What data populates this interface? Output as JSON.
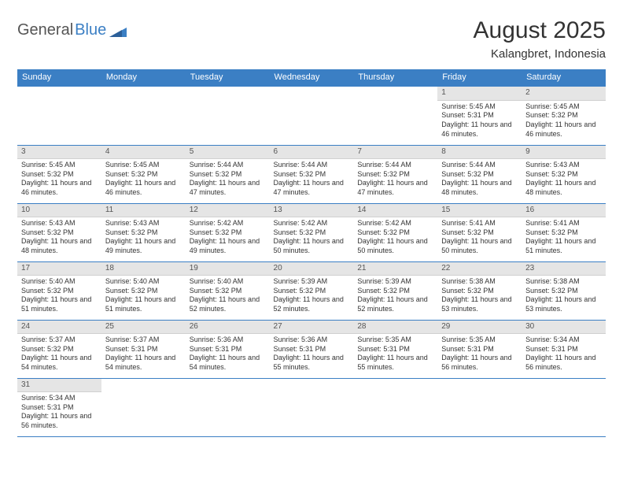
{
  "logo": {
    "word1": "General",
    "word2": "Blue"
  },
  "header": {
    "title": "August 2025",
    "location": "Kalangbret, Indonesia"
  },
  "columns": [
    "Sunday",
    "Monday",
    "Tuesday",
    "Wednesday",
    "Thursday",
    "Friday",
    "Saturday"
  ],
  "colors": {
    "header_bg": "#3b7fc4",
    "header_fg": "#ffffff",
    "daynum_bg": "#e5e5e5",
    "rule": "#3b7fc4"
  },
  "layout": {
    "blank_leading": 5
  },
  "days": [
    {
      "n": 1,
      "sunrise": "5:45 AM",
      "sunset": "5:31 PM",
      "daylight": "11 hours and 46 minutes."
    },
    {
      "n": 2,
      "sunrise": "5:45 AM",
      "sunset": "5:32 PM",
      "daylight": "11 hours and 46 minutes."
    },
    {
      "n": 3,
      "sunrise": "5:45 AM",
      "sunset": "5:32 PM",
      "daylight": "11 hours and 46 minutes."
    },
    {
      "n": 4,
      "sunrise": "5:45 AM",
      "sunset": "5:32 PM",
      "daylight": "11 hours and 46 minutes."
    },
    {
      "n": 5,
      "sunrise": "5:44 AM",
      "sunset": "5:32 PM",
      "daylight": "11 hours and 47 minutes."
    },
    {
      "n": 6,
      "sunrise": "5:44 AM",
      "sunset": "5:32 PM",
      "daylight": "11 hours and 47 minutes."
    },
    {
      "n": 7,
      "sunrise": "5:44 AM",
      "sunset": "5:32 PM",
      "daylight": "11 hours and 47 minutes."
    },
    {
      "n": 8,
      "sunrise": "5:44 AM",
      "sunset": "5:32 PM",
      "daylight": "11 hours and 48 minutes."
    },
    {
      "n": 9,
      "sunrise": "5:43 AM",
      "sunset": "5:32 PM",
      "daylight": "11 hours and 48 minutes."
    },
    {
      "n": 10,
      "sunrise": "5:43 AM",
      "sunset": "5:32 PM",
      "daylight": "11 hours and 48 minutes."
    },
    {
      "n": 11,
      "sunrise": "5:43 AM",
      "sunset": "5:32 PM",
      "daylight": "11 hours and 49 minutes."
    },
    {
      "n": 12,
      "sunrise": "5:42 AM",
      "sunset": "5:32 PM",
      "daylight": "11 hours and 49 minutes."
    },
    {
      "n": 13,
      "sunrise": "5:42 AM",
      "sunset": "5:32 PM",
      "daylight": "11 hours and 50 minutes."
    },
    {
      "n": 14,
      "sunrise": "5:42 AM",
      "sunset": "5:32 PM",
      "daylight": "11 hours and 50 minutes."
    },
    {
      "n": 15,
      "sunrise": "5:41 AM",
      "sunset": "5:32 PM",
      "daylight": "11 hours and 50 minutes."
    },
    {
      "n": 16,
      "sunrise": "5:41 AM",
      "sunset": "5:32 PM",
      "daylight": "11 hours and 51 minutes."
    },
    {
      "n": 17,
      "sunrise": "5:40 AM",
      "sunset": "5:32 PM",
      "daylight": "11 hours and 51 minutes."
    },
    {
      "n": 18,
      "sunrise": "5:40 AM",
      "sunset": "5:32 PM",
      "daylight": "11 hours and 51 minutes."
    },
    {
      "n": 19,
      "sunrise": "5:40 AM",
      "sunset": "5:32 PM",
      "daylight": "11 hours and 52 minutes."
    },
    {
      "n": 20,
      "sunrise": "5:39 AM",
      "sunset": "5:32 PM",
      "daylight": "11 hours and 52 minutes."
    },
    {
      "n": 21,
      "sunrise": "5:39 AM",
      "sunset": "5:32 PM",
      "daylight": "11 hours and 52 minutes."
    },
    {
      "n": 22,
      "sunrise": "5:38 AM",
      "sunset": "5:32 PM",
      "daylight": "11 hours and 53 minutes."
    },
    {
      "n": 23,
      "sunrise": "5:38 AM",
      "sunset": "5:32 PM",
      "daylight": "11 hours and 53 minutes."
    },
    {
      "n": 24,
      "sunrise": "5:37 AM",
      "sunset": "5:32 PM",
      "daylight": "11 hours and 54 minutes."
    },
    {
      "n": 25,
      "sunrise": "5:37 AM",
      "sunset": "5:31 PM",
      "daylight": "11 hours and 54 minutes."
    },
    {
      "n": 26,
      "sunrise": "5:36 AM",
      "sunset": "5:31 PM",
      "daylight": "11 hours and 54 minutes."
    },
    {
      "n": 27,
      "sunrise": "5:36 AM",
      "sunset": "5:31 PM",
      "daylight": "11 hours and 55 minutes."
    },
    {
      "n": 28,
      "sunrise": "5:35 AM",
      "sunset": "5:31 PM",
      "daylight": "11 hours and 55 minutes."
    },
    {
      "n": 29,
      "sunrise": "5:35 AM",
      "sunset": "5:31 PM",
      "daylight": "11 hours and 56 minutes."
    },
    {
      "n": 30,
      "sunrise": "5:34 AM",
      "sunset": "5:31 PM",
      "daylight": "11 hours and 56 minutes."
    },
    {
      "n": 31,
      "sunrise": "5:34 AM",
      "sunset": "5:31 PM",
      "daylight": "11 hours and 56 minutes."
    }
  ],
  "labels": {
    "sunrise": "Sunrise: ",
    "sunset": "Sunset: ",
    "daylight": "Daylight: "
  }
}
